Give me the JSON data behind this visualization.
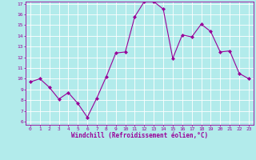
{
  "x": [
    0,
    1,
    2,
    3,
    4,
    5,
    6,
    7,
    8,
    9,
    10,
    11,
    12,
    13,
    14,
    15,
    16,
    17,
    18,
    19,
    20,
    21,
    22,
    23
  ],
  "y": [
    9.7,
    10.0,
    9.2,
    8.1,
    8.7,
    7.7,
    6.4,
    8.2,
    10.2,
    12.4,
    12.5,
    15.8,
    17.2,
    17.2,
    16.5,
    11.9,
    14.1,
    13.9,
    15.1,
    14.4,
    12.5,
    12.6,
    10.5,
    10.0
  ],
  "line_color": "#990099",
  "marker": "D",
  "marker_size": 2.0,
  "bg_color": "#b2ebeb",
  "grid_color": "#ffffff",
  "xlabel": "Windchill (Refroidissement éolien,°C)",
  "xlabel_color": "#990099",
  "tick_color": "#990099",
  "spine_color": "#990099",
  "ylim": [
    6,
    17
  ],
  "xlim": [
    -0.5,
    23.5
  ],
  "yticks": [
    6,
    7,
    8,
    9,
    10,
    11,
    12,
    13,
    14,
    15,
    16,
    17
  ],
  "xticks": [
    0,
    1,
    2,
    3,
    4,
    5,
    6,
    7,
    8,
    9,
    10,
    11,
    12,
    13,
    14,
    15,
    16,
    17,
    18,
    19,
    20,
    21,
    22,
    23
  ],
  "tick_fontsize": 4.5,
  "xlabel_fontsize": 5.5,
  "linewidth": 0.8
}
